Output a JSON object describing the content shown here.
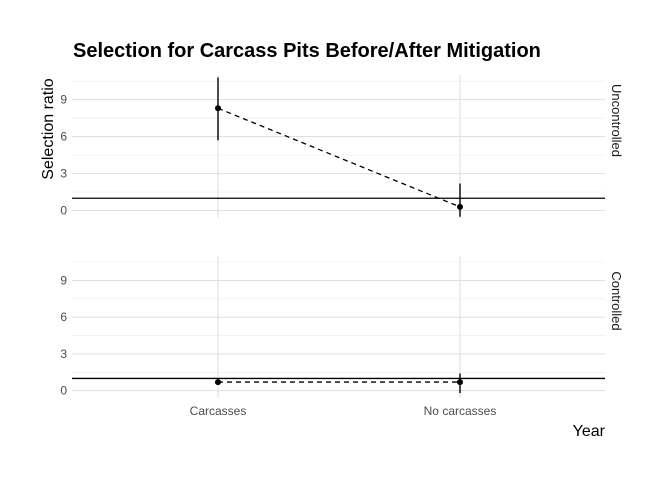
{
  "chart_data": {
    "type": "scatter",
    "title": "Selection for Carcass Pits Before/After Mitigation",
    "xlabel": "Year",
    "ylabel": "Selection ratio",
    "categories": [
      "Carcasses",
      "No carcasses"
    ],
    "ylim": [
      -0.6,
      11
    ],
    "yticks": [
      0,
      3,
      6,
      9
    ],
    "reference_line": 1,
    "grid": true,
    "facets": [
      {
        "label": "Uncontrolled",
        "points": [
          {
            "x": "Carcasses",
            "y": 8.3,
            "ymin": 5.7,
            "ymax": 10.8
          },
          {
            "x": "No carcasses",
            "y": 0.3,
            "ymin": -0.5,
            "ymax": 2.2
          }
        ]
      },
      {
        "label": "Controlled",
        "points": [
          {
            "x": "Carcasses",
            "y": 0.7,
            "ymin": 0.5,
            "ymax": 0.9
          },
          {
            "x": "No carcasses",
            "y": 0.7,
            "ymin": -0.2,
            "ymax": 1.4
          }
        ]
      }
    ]
  }
}
